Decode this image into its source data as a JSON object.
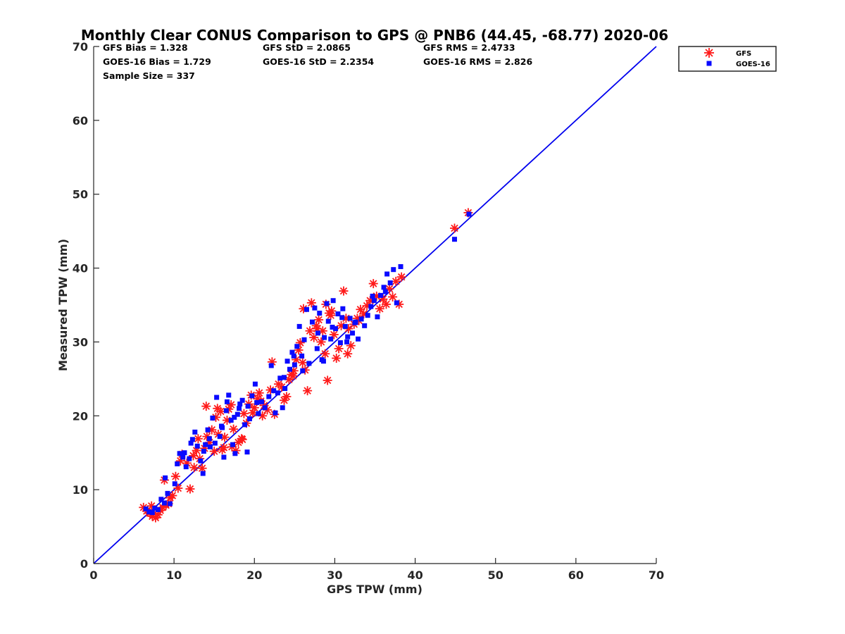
{
  "chart_data": {
    "type": "scatter",
    "title": "Monthly Clear CONUS Comparison to GPS @ PNB6 (44.45, -68.77) 2020-06",
    "xlabel": "GPS TPW (mm)",
    "ylabel": "Measured TPW (mm)",
    "xlim": [
      0,
      70
    ],
    "ylim": [
      0,
      70
    ],
    "xticks": [
      0,
      10,
      20,
      30,
      40,
      50,
      60,
      70
    ],
    "yticks": [
      0,
      10,
      20,
      30,
      40,
      50,
      60,
      70
    ],
    "grid": false,
    "legend_position": "top-right outside",
    "stats": [
      [
        "GFS Bias = 1.328",
        "GFS StD = 2.0865",
        "GFS RMS = 2.4733"
      ],
      [
        "GOES-16 Bias = 1.729",
        "GOES-16 StD = 2.2354",
        "GOES-16 RMS = 2.826"
      ],
      [
        "Sample Size = 337"
      ]
    ],
    "reference_line": {
      "name": "1:1 line",
      "x": [
        0,
        70
      ],
      "y": [
        0,
        70
      ],
      "color": "#0000ee"
    },
    "series": [
      {
        "name": "GFS",
        "marker": "asterisk",
        "color": "#ff1a1a",
        "points": [
          [
            6.2,
            7.6
          ],
          [
            6.6,
            7.1
          ],
          [
            7.0,
            6.8
          ],
          [
            7.3,
            6.4
          ],
          [
            7.7,
            6.2
          ],
          [
            8.0,
            6.6
          ],
          [
            8.3,
            7.2
          ],
          [
            8.6,
            7.6
          ],
          [
            9.0,
            7.9
          ],
          [
            9.3,
            8.1
          ],
          [
            9.5,
            8.9
          ],
          [
            7.2,
            7.8
          ],
          [
            8.8,
            11.3
          ],
          [
            10.2,
            11.8
          ],
          [
            10.5,
            10.2
          ],
          [
            11.0,
            14.8
          ],
          [
            11.6,
            13.6
          ],
          [
            12.0,
            10.1
          ],
          [
            12.4,
            14.6
          ],
          [
            12.8,
            15.3
          ],
          [
            13.2,
            14.2
          ],
          [
            13.5,
            12.9
          ],
          [
            13.8,
            15.6
          ],
          [
            14.1,
            17.2
          ],
          [
            14.4,
            16.4
          ],
          [
            14.7,
            18.1
          ],
          [
            15.0,
            15.2
          ],
          [
            15.2,
            19.8
          ],
          [
            15.5,
            17.5
          ],
          [
            15.8,
            20.6
          ],
          [
            16.0,
            15.4
          ],
          [
            16.3,
            17.1
          ],
          [
            16.6,
            19.4
          ],
          [
            16.8,
            20.9
          ],
          [
            17.1,
            21.5
          ],
          [
            17.4,
            18.2
          ],
          [
            17.7,
            15.3
          ],
          [
            18.0,
            16.4
          ],
          [
            18.4,
            16.9
          ],
          [
            18.7,
            20.3
          ],
          [
            19.0,
            19.0
          ],
          [
            19.3,
            21.6
          ],
          [
            19.6,
            22.8
          ],
          [
            20.0,
            21.1
          ],
          [
            20.4,
            22.3
          ],
          [
            20.8,
            22.0
          ],
          [
            21.2,
            21.4
          ],
          [
            21.6,
            20.8
          ],
          [
            22.0,
            23.5
          ],
          [
            22.2,
            27.3
          ],
          [
            22.5,
            20.2
          ],
          [
            23.0,
            24.3
          ],
          [
            23.4,
            23.9
          ],
          [
            23.7,
            22.1
          ],
          [
            24.0,
            22.6
          ],
          [
            24.3,
            24.9
          ],
          [
            24.6,
            25.6
          ],
          [
            24.9,
            26.1
          ],
          [
            25.2,
            27.6
          ],
          [
            25.5,
            28.9
          ],
          [
            25.7,
            29.9
          ],
          [
            26.0,
            27.2
          ],
          [
            26.3,
            26.2
          ],
          [
            26.6,
            23.4
          ],
          [
            26.9,
            31.5
          ],
          [
            27.1,
            35.3
          ],
          [
            27.4,
            30.6
          ],
          [
            27.7,
            32.2
          ],
          [
            28.0,
            33.0
          ],
          [
            28.3,
            30.0
          ],
          [
            28.5,
            31.5
          ],
          [
            28.8,
            28.4
          ],
          [
            29.1,
            24.8
          ],
          [
            29.3,
            33.9
          ],
          [
            29.6,
            34.2
          ],
          [
            29.9,
            31.0
          ],
          [
            30.2,
            27.8
          ],
          [
            30.5,
            29.1
          ],
          [
            30.8,
            32.2
          ],
          [
            31.1,
            36.9
          ],
          [
            31.4,
            33.2
          ],
          [
            31.7,
            31.8
          ],
          [
            32.0,
            29.5
          ],
          [
            32.4,
            32.4
          ],
          [
            32.8,
            33.2
          ],
          [
            33.2,
            34.4
          ],
          [
            33.6,
            33.8
          ],
          [
            34.0,
            34.9
          ],
          [
            34.4,
            35.6
          ],
          [
            34.8,
            37.9
          ],
          [
            35.2,
            36.2
          ],
          [
            35.6,
            34.5
          ],
          [
            36.0,
            35.8
          ],
          [
            36.4,
            35.1
          ],
          [
            36.8,
            37.2
          ],
          [
            37.2,
            36.1
          ],
          [
            37.6,
            38.2
          ],
          [
            38.0,
            35.1
          ],
          [
            38.3,
            38.8
          ],
          [
            44.9,
            45.4
          ],
          [
            46.6,
            47.5
          ],
          [
            12.5,
            13.0
          ],
          [
            14.0,
            21.3
          ],
          [
            16.2,
            15.7
          ],
          [
            18.5,
            16.8
          ],
          [
            19.8,
            20.4
          ],
          [
            21.0,
            20.0
          ],
          [
            24.8,
            25.4
          ],
          [
            27.8,
            31.8
          ],
          [
            29.5,
            33.6
          ],
          [
            31.6,
            28.4
          ],
          [
            33.0,
            32.9
          ],
          [
            9.8,
            9.2
          ],
          [
            10.8,
            13.9
          ],
          [
            13.0,
            16.9
          ],
          [
            15.4,
            21.0
          ],
          [
            17.2,
            15.8
          ],
          [
            20.6,
            23.1
          ],
          [
            26.1,
            34.5
          ],
          [
            28.9,
            35.1
          ]
        ]
      },
      {
        "name": "GOES-16",
        "marker": "square",
        "color": "#0a0aff",
        "points": [
          [
            6.5,
            7.4
          ],
          [
            6.9,
            7.0
          ],
          [
            7.3,
            6.9
          ],
          [
            7.6,
            7.5
          ],
          [
            8.0,
            7.3
          ],
          [
            8.4,
            8.7
          ],
          [
            8.8,
            8.2
          ],
          [
            9.2,
            9.5
          ],
          [
            8.9,
            11.6
          ],
          [
            10.1,
            10.8
          ],
          [
            10.4,
            13.5
          ],
          [
            10.7,
            14.9
          ],
          [
            11.1,
            14.4
          ],
          [
            11.5,
            13.1
          ],
          [
            11.9,
            14.2
          ],
          [
            12.3,
            16.8
          ],
          [
            12.6,
            17.8
          ],
          [
            12.9,
            15.9
          ],
          [
            13.3,
            13.9
          ],
          [
            13.6,
            12.2
          ],
          [
            13.9,
            16.1
          ],
          [
            14.2,
            18.1
          ],
          [
            14.5,
            15.8
          ],
          [
            14.8,
            19.7
          ],
          [
            15.1,
            16.3
          ],
          [
            15.3,
            22.5
          ],
          [
            15.7,
            17.2
          ],
          [
            16.0,
            18.4
          ],
          [
            16.2,
            14.4
          ],
          [
            16.5,
            20.7
          ],
          [
            16.8,
            22.8
          ],
          [
            17.1,
            19.4
          ],
          [
            17.3,
            16.1
          ],
          [
            17.6,
            14.9
          ],
          [
            17.9,
            20.2
          ],
          [
            18.2,
            21.6
          ],
          [
            18.5,
            22.1
          ],
          [
            18.8,
            18.8
          ],
          [
            19.1,
            15.1
          ],
          [
            19.4,
            19.6
          ],
          [
            19.7,
            22.7
          ],
          [
            20.1,
            24.3
          ],
          [
            20.5,
            20.3
          ],
          [
            20.9,
            21.9
          ],
          [
            21.3,
            21.1
          ],
          [
            21.8,
            22.6
          ],
          [
            22.1,
            26.8
          ],
          [
            22.6,
            20.4
          ],
          [
            22.9,
            23.1
          ],
          [
            23.2,
            25.1
          ],
          [
            23.5,
            21.1
          ],
          [
            23.8,
            23.7
          ],
          [
            24.1,
            27.4
          ],
          [
            24.4,
            26.3
          ],
          [
            24.7,
            28.6
          ],
          [
            25.0,
            26.9
          ],
          [
            25.3,
            29.4
          ],
          [
            25.6,
            32.1
          ],
          [
            25.9,
            28.1
          ],
          [
            26.2,
            30.3
          ],
          [
            26.5,
            34.4
          ],
          [
            26.8,
            27.1
          ],
          [
            27.2,
            32.7
          ],
          [
            27.5,
            34.6
          ],
          [
            27.8,
            29.1
          ],
          [
            28.1,
            33.9
          ],
          [
            28.4,
            27.6
          ],
          [
            28.7,
            30.6
          ],
          [
            29.0,
            35.2
          ],
          [
            29.2,
            32.8
          ],
          [
            29.5,
            30.4
          ],
          [
            29.8,
            35.6
          ],
          [
            30.1,
            31.8
          ],
          [
            30.4,
            33.8
          ],
          [
            30.7,
            29.9
          ],
          [
            31.0,
            34.5
          ],
          [
            31.3,
            32.1
          ],
          [
            31.6,
            30.7
          ],
          [
            31.9,
            33.2
          ],
          [
            32.2,
            31.2
          ],
          [
            32.5,
            32.6
          ],
          [
            32.9,
            30.4
          ],
          [
            33.3,
            33.1
          ],
          [
            33.7,
            32.2
          ],
          [
            34.1,
            33.6
          ],
          [
            34.5,
            34.8
          ],
          [
            34.9,
            35.6
          ],
          [
            35.3,
            33.4
          ],
          [
            35.7,
            36.3
          ],
          [
            36.1,
            37.4
          ],
          [
            36.5,
            39.2
          ],
          [
            36.9,
            38.0
          ],
          [
            37.3,
            39.8
          ],
          [
            37.7,
            35.3
          ],
          [
            38.2,
            40.2
          ],
          [
            44.9,
            43.9
          ],
          [
            46.7,
            47.3
          ],
          [
            12.1,
            16.3
          ],
          [
            14.4,
            16.9
          ],
          [
            16.6,
            21.9
          ],
          [
            18.1,
            21.0
          ],
          [
            20.3,
            21.8
          ],
          [
            23.7,
            25.2
          ],
          [
            26.0,
            26.1
          ],
          [
            27.9,
            31.2
          ],
          [
            29.7,
            32.0
          ],
          [
            30.9,
            33.3
          ],
          [
            32.6,
            32.7
          ],
          [
            34.7,
            36.2
          ],
          [
            36.3,
            36.8
          ],
          [
            9.5,
            8.1
          ],
          [
            11.3,
            15.0
          ],
          [
            13.7,
            15.2
          ],
          [
            15.9,
            18.6
          ],
          [
            17.5,
            19.8
          ],
          [
            19.2,
            21.3
          ],
          [
            22.4,
            23.4
          ],
          [
            24.9,
            28.1
          ],
          [
            28.6,
            27.4
          ],
          [
            31.5,
            30.0
          ]
        ]
      }
    ]
  }
}
